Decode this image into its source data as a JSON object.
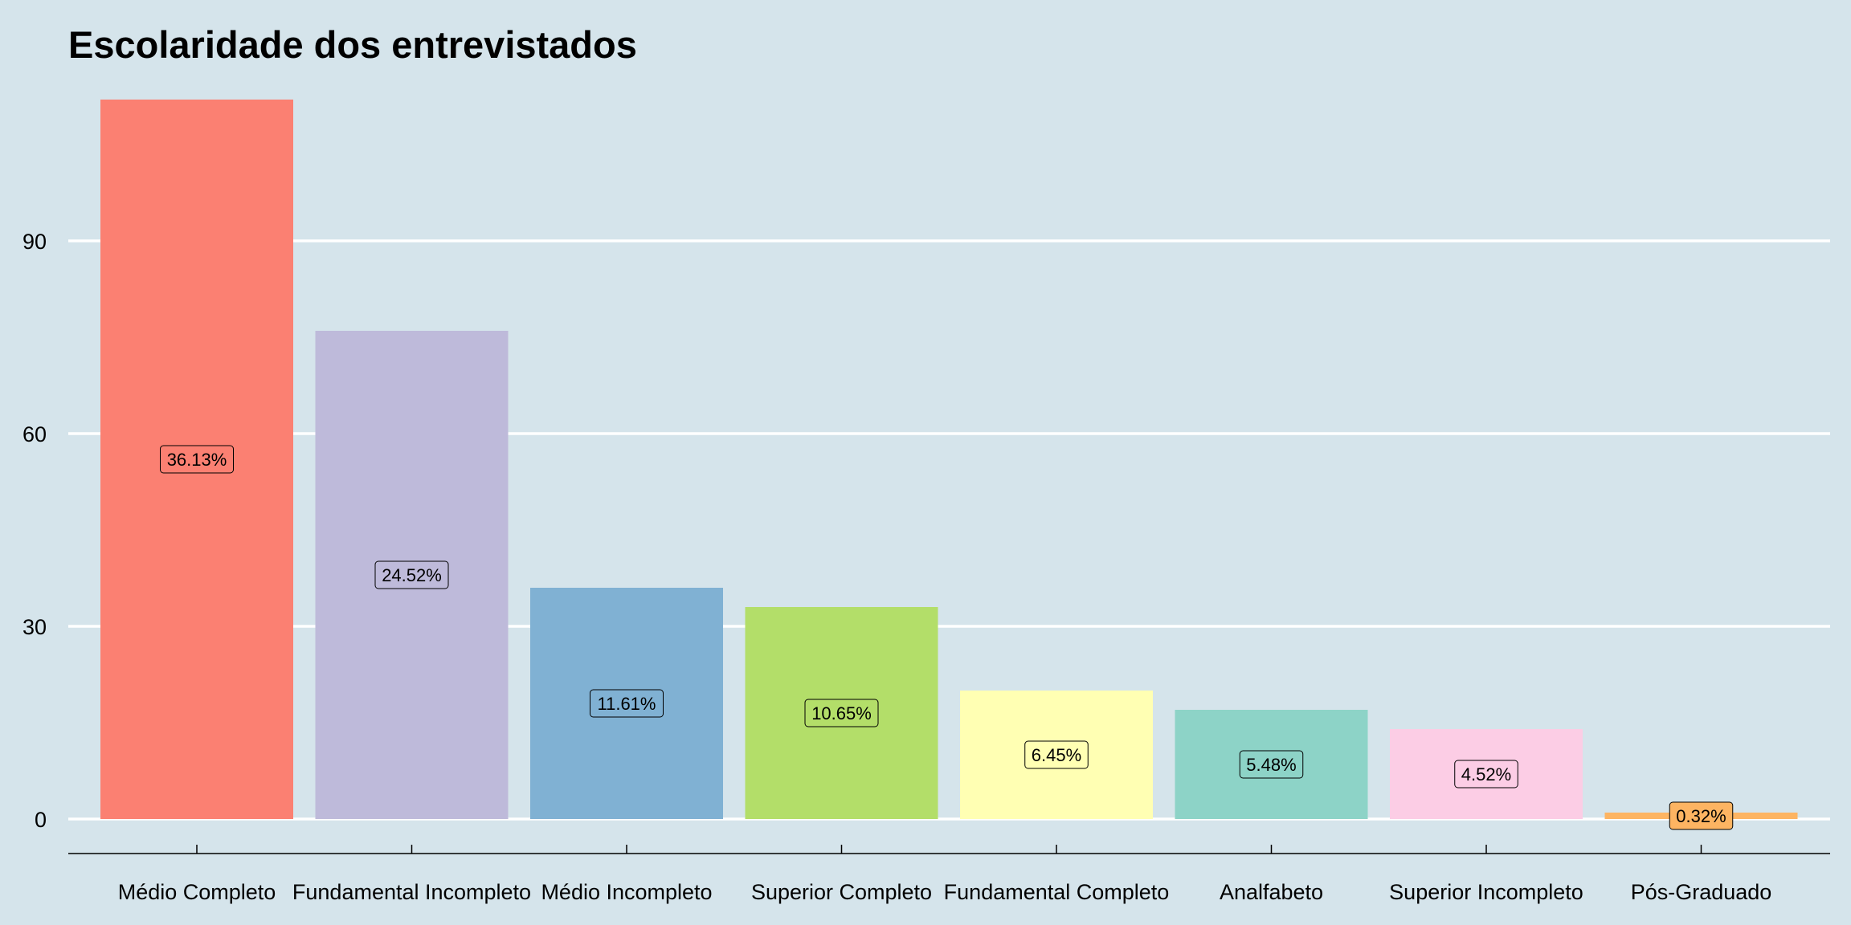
{
  "chart_data": {
    "type": "bar",
    "title": "Escolaridade dos entrevistados",
    "xlabel": "",
    "ylabel": "",
    "categories": [
      "Médio Completo",
      "Fundamental Incompleto",
      "Médio Incompleto",
      "Superior Completo",
      "Fundamental Completo",
      "Analfabeto",
      "Superior Incompleto",
      "Pós-Graduado"
    ],
    "values": [
      112,
      76,
      36,
      33,
      20,
      17,
      14,
      1
    ],
    "labels": [
      "36.13%",
      "24.52%",
      "11.61%",
      "10.65%",
      "6.45%",
      "5.48%",
      "4.52%",
      "0.32%"
    ],
    "colors": [
      "#fb8072",
      "#bebada",
      "#80b1d3",
      "#b3de69",
      "#ffffb3",
      "#8dd3c7",
      "#fccde5",
      "#fdb462"
    ],
    "yticks": [
      0,
      30,
      60,
      90
    ],
    "ylim": [
      0,
      112
    ],
    "grid": true,
    "background": "#d5e4eb"
  }
}
